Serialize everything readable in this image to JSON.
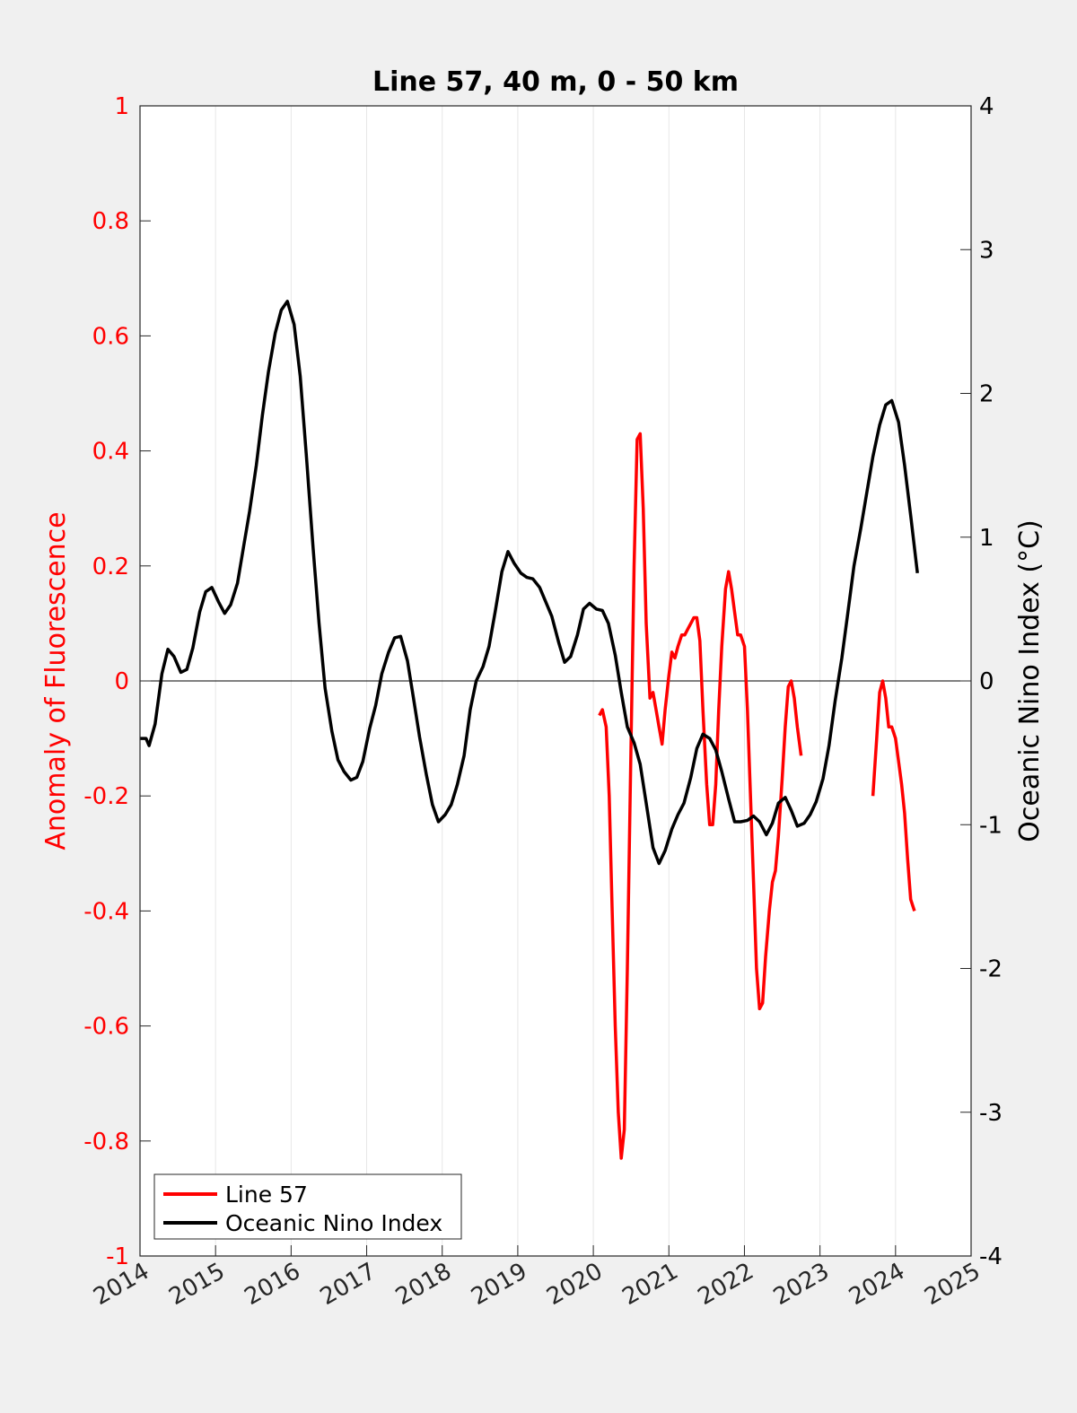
{
  "chart_data": {
    "type": "line",
    "title": "Line 57, 40 m, 0 - 50 km",
    "ylabel_left": "Anomaly of Fluorescence",
    "ylabel_right": "Oceanic Nino Index (°C)",
    "xlim": [
      2014,
      2025
    ],
    "ylim_left": [
      -1,
      1
    ],
    "ylim_right": [
      -4,
      4
    ],
    "grid": "vertical",
    "legend_position": "bottom-left",
    "x_ticks": [
      2014,
      2015,
      2016,
      2017,
      2018,
      2019,
      2020,
      2021,
      2022,
      2023,
      2024,
      2025
    ],
    "x_tick_labels": [
      "2014",
      "2015",
      "2016",
      "2017",
      "2018",
      "2019",
      "2020",
      "2021",
      "2022",
      "2023",
      "2024",
      "2025"
    ],
    "y_left_ticks": [
      1,
      0.8,
      0.6,
      0.4,
      0.2,
      0,
      -0.2,
      -0.4,
      -0.6,
      -0.8,
      -1
    ],
    "y_left_tick_labels": [
      "1",
      "0.8",
      "0.6",
      "0.4",
      "0.2",
      "0",
      "-0.2",
      "-0.4",
      "-0.6",
      "-0.8",
      "-1"
    ],
    "y_right_ticks": [
      4,
      3,
      2,
      1,
      0,
      -1,
      -2,
      -3,
      -4
    ],
    "y_right_tick_labels": [
      "4",
      "3",
      "2",
      "1",
      "0",
      "-1",
      "-2",
      "-3",
      "-4"
    ],
    "colors": {
      "line57": "#ff0000",
      "oni": "#000000",
      "left_axis": "#ff0000",
      "right_axis": "#000000"
    },
    "series": [
      {
        "name": "Line 57",
        "axis": "left",
        "segments": [
          [
            [
              2020.08,
              -0.06
            ],
            [
              2020.12,
              -0.05
            ],
            [
              2020.17,
              -0.08
            ],
            [
              2020.21,
              -0.2
            ],
            [
              2020.25,
              -0.4
            ],
            [
              2020.29,
              -0.6
            ],
            [
              2020.33,
              -0.75
            ],
            [
              2020.37,
              -0.83
            ],
            [
              2020.41,
              -0.78
            ],
            [
              2020.45,
              -0.5
            ],
            [
              2020.5,
              -0.1
            ],
            [
              2020.54,
              0.2
            ],
            [
              2020.58,
              0.42
            ],
            [
              2020.62,
              0.43
            ],
            [
              2020.66,
              0.3
            ],
            [
              2020.7,
              0.1
            ],
            [
              2020.75,
              -0.03
            ],
            [
              2020.79,
              -0.02
            ],
            [
              2020.83,
              -0.05
            ],
            [
              2020.87,
              -0.08
            ],
            [
              2020.91,
              -0.11
            ],
            [
              2020.95,
              -0.05
            ],
            [
              2021.0,
              0.01
            ],
            [
              2021.04,
              0.05
            ],
            [
              2021.08,
              0.04
            ],
            [
              2021.12,
              0.06
            ],
            [
              2021.17,
              0.08
            ],
            [
              2021.21,
              0.08
            ],
            [
              2021.25,
              0.09
            ],
            [
              2021.29,
              0.1
            ],
            [
              2021.33,
              0.11
            ],
            [
              2021.37,
              0.11
            ],
            [
              2021.41,
              0.07
            ],
            [
              2021.45,
              -0.05
            ],
            [
              2021.5,
              -0.18
            ],
            [
              2021.54,
              -0.25
            ],
            [
              2021.58,
              -0.25
            ],
            [
              2021.62,
              -0.18
            ],
            [
              2021.66,
              -0.05
            ],
            [
              2021.7,
              0.06
            ],
            [
              2021.75,
              0.16
            ],
            [
              2021.79,
              0.19
            ],
            [
              2021.83,
              0.16
            ],
            [
              2021.87,
              0.12
            ],
            [
              2021.91,
              0.08
            ],
            [
              2021.95,
              0.08
            ],
            [
              2022.0,
              0.06
            ],
            [
              2022.04,
              -0.05
            ],
            [
              2022.08,
              -0.2
            ],
            [
              2022.12,
              -0.35
            ],
            [
              2022.16,
              -0.5
            ],
            [
              2022.2,
              -0.57
            ],
            [
              2022.24,
              -0.56
            ],
            [
              2022.28,
              -0.48
            ],
            [
              2022.33,
              -0.4
            ],
            [
              2022.37,
              -0.35
            ],
            [
              2022.41,
              -0.33
            ],
            [
              2022.45,
              -0.27
            ],
            [
              2022.5,
              -0.17
            ],
            [
              2022.54,
              -0.08
            ],
            [
              2022.58,
              -0.01
            ],
            [
              2022.62,
              0.0
            ],
            [
              2022.66,
              -0.03
            ],
            [
              2022.7,
              -0.08
            ],
            [
              2022.75,
              -0.13
            ]
          ],
          [
            [
              2023.7,
              -0.2
            ],
            [
              2023.75,
              -0.1
            ],
            [
              2023.79,
              -0.02
            ],
            [
              2023.83,
              0.0
            ],
            [
              2023.87,
              -0.03
            ],
            [
              2023.91,
              -0.08
            ],
            [
              2023.95,
              -0.08
            ],
            [
              2024.0,
              -0.1
            ],
            [
              2024.04,
              -0.14
            ],
            [
              2024.08,
              -0.18
            ],
            [
              2024.12,
              -0.23
            ],
            [
              2024.16,
              -0.31
            ],
            [
              2024.2,
              -0.38
            ],
            [
              2024.25,
              -0.4
            ]
          ]
        ]
      },
      {
        "name": "Oceanic Nino Index",
        "axis": "right",
        "segments": [
          [
            [
              2014.0,
              -0.4
            ],
            [
              2014.08,
              -0.4
            ],
            [
              2014.12,
              -0.45
            ],
            [
              2014.2,
              -0.3
            ],
            [
              2014.29,
              0.05
            ],
            [
              2014.37,
              0.22
            ],
            [
              2014.45,
              0.17
            ],
            [
              2014.54,
              0.06
            ],
            [
              2014.62,
              0.08
            ],
            [
              2014.7,
              0.23
            ],
            [
              2014.79,
              0.48
            ],
            [
              2014.87,
              0.62
            ],
            [
              2014.95,
              0.65
            ],
            [
              2015.04,
              0.55
            ],
            [
              2015.12,
              0.47
            ],
            [
              2015.2,
              0.53
            ],
            [
              2015.29,
              0.68
            ],
            [
              2015.37,
              0.93
            ],
            [
              2015.45,
              1.18
            ],
            [
              2015.54,
              1.5
            ],
            [
              2015.62,
              1.85
            ],
            [
              2015.7,
              2.15
            ],
            [
              2015.79,
              2.42
            ],
            [
              2015.87,
              2.58
            ],
            [
              2015.95,
              2.64
            ],
            [
              2016.04,
              2.48
            ],
            [
              2016.12,
              2.12
            ],
            [
              2016.2,
              1.58
            ],
            [
              2016.29,
              0.93
            ],
            [
              2016.37,
              0.4
            ],
            [
              2016.45,
              -0.05
            ],
            [
              2016.54,
              -0.35
            ],
            [
              2016.62,
              -0.55
            ],
            [
              2016.7,
              -0.63
            ],
            [
              2016.79,
              -0.69
            ],
            [
              2016.87,
              -0.67
            ],
            [
              2016.95,
              -0.56
            ],
            [
              2017.04,
              -0.33
            ],
            [
              2017.12,
              -0.17
            ],
            [
              2017.2,
              0.05
            ],
            [
              2017.29,
              0.2
            ],
            [
              2017.37,
              0.3
            ],
            [
              2017.45,
              0.31
            ],
            [
              2017.54,
              0.14
            ],
            [
              2017.62,
              -0.12
            ],
            [
              2017.7,
              -0.39
            ],
            [
              2017.79,
              -0.65
            ],
            [
              2017.87,
              -0.86
            ],
            [
              2017.95,
              -0.98
            ],
            [
              2018.04,
              -0.93
            ],
            [
              2018.12,
              -0.86
            ],
            [
              2018.2,
              -0.72
            ],
            [
              2018.29,
              -0.52
            ],
            [
              2018.37,
              -0.2
            ],
            [
              2018.45,
              0.0
            ],
            [
              2018.54,
              0.1
            ],
            [
              2018.62,
              0.24
            ],
            [
              2018.7,
              0.48
            ],
            [
              2018.79,
              0.76
            ],
            [
              2018.87,
              0.9
            ],
            [
              2018.95,
              0.82
            ],
            [
              2019.04,
              0.75
            ],
            [
              2019.12,
              0.72
            ],
            [
              2019.2,
              0.71
            ],
            [
              2019.29,
              0.65
            ],
            [
              2019.37,
              0.55
            ],
            [
              2019.45,
              0.45
            ],
            [
              2019.54,
              0.27
            ],
            [
              2019.62,
              0.13
            ],
            [
              2019.7,
              0.17
            ],
            [
              2019.79,
              0.32
            ],
            [
              2019.87,
              0.5
            ],
            [
              2019.95,
              0.54
            ],
            [
              2020.04,
              0.5
            ],
            [
              2020.12,
              0.49
            ],
            [
              2020.2,
              0.4
            ],
            [
              2020.29,
              0.18
            ],
            [
              2020.37,
              -0.08
            ],
            [
              2020.45,
              -0.32
            ],
            [
              2020.54,
              -0.43
            ],
            [
              2020.62,
              -0.58
            ],
            [
              2020.7,
              -0.85
            ],
            [
              2020.79,
              -1.16
            ],
            [
              2020.87,
              -1.27
            ],
            [
              2020.95,
              -1.18
            ],
            [
              2021.04,
              -1.03
            ],
            [
              2021.12,
              -0.93
            ],
            [
              2021.2,
              -0.85
            ],
            [
              2021.29,
              -0.67
            ],
            [
              2021.37,
              -0.47
            ],
            [
              2021.45,
              -0.37
            ],
            [
              2021.54,
              -0.4
            ],
            [
              2021.62,
              -0.48
            ],
            [
              2021.7,
              -0.63
            ],
            [
              2021.79,
              -0.82
            ],
            [
              2021.87,
              -0.98
            ],
            [
              2021.95,
              -0.98
            ],
            [
              2022.04,
              -0.97
            ],
            [
              2022.12,
              -0.94
            ],
            [
              2022.2,
              -0.98
            ],
            [
              2022.29,
              -1.07
            ],
            [
              2022.37,
              -0.99
            ],
            [
              2022.45,
              -0.85
            ],
            [
              2022.54,
              -0.81
            ],
            [
              2022.62,
              -0.9
            ],
            [
              2022.7,
              -1.01
            ],
            [
              2022.79,
              -0.99
            ],
            [
              2022.87,
              -0.93
            ],
            [
              2022.95,
              -0.84
            ],
            [
              2023.04,
              -0.68
            ],
            [
              2023.12,
              -0.45
            ],
            [
              2023.2,
              -0.14
            ],
            [
              2023.29,
              0.16
            ],
            [
              2023.37,
              0.48
            ],
            [
              2023.45,
              0.8
            ],
            [
              2023.54,
              1.06
            ],
            [
              2023.62,
              1.31
            ],
            [
              2023.7,
              1.56
            ],
            [
              2023.79,
              1.78
            ],
            [
              2023.87,
              1.92
            ],
            [
              2023.95,
              1.95
            ],
            [
              2024.04,
              1.8
            ],
            [
              2024.12,
              1.5
            ],
            [
              2024.2,
              1.15
            ],
            [
              2024.29,
              0.75
            ]
          ]
        ]
      }
    ],
    "zero_line": 0
  }
}
